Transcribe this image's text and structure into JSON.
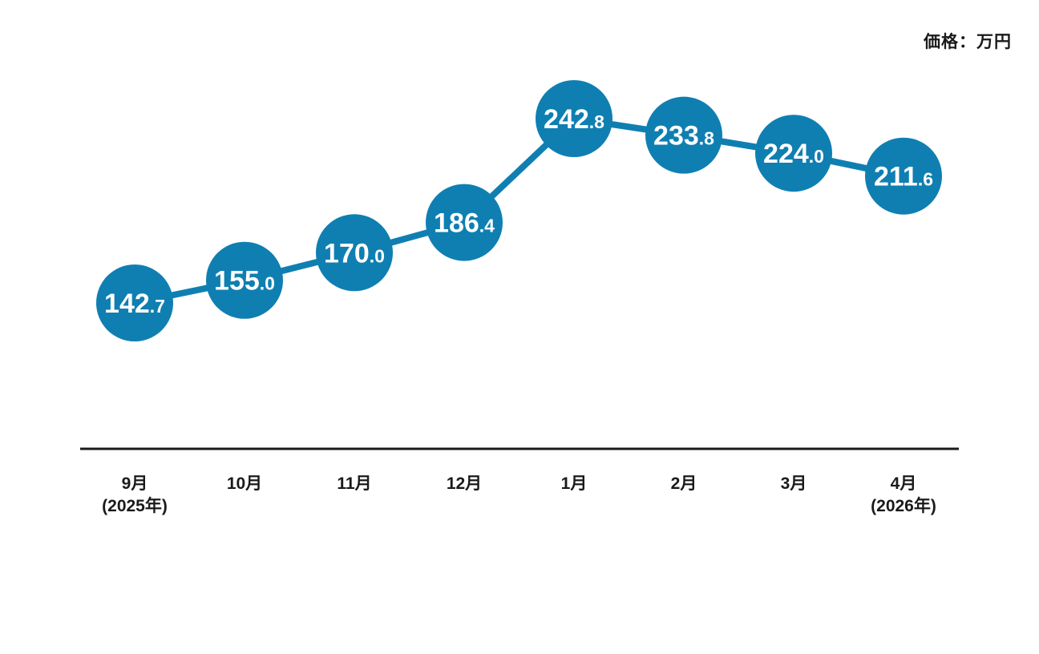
{
  "chart": {
    "unit_label": "価格：万円"
  },
  "chart_data": {
    "type": "line",
    "title": "",
    "unit_label": "価格：万円",
    "series": [
      {
        "name": "価格（万円）",
        "values": [
          142.7,
          155.0,
          170.0,
          186.4,
          242.8,
          233.8,
          224.0,
          211.6
        ]
      }
    ],
    "categories": [
      {
        "month": "9月",
        "year": "(2025年)"
      },
      {
        "month": "10月",
        "year": ""
      },
      {
        "month": "11月",
        "year": ""
      },
      {
        "month": "12月",
        "year": ""
      },
      {
        "month": "1月",
        "year": ""
      },
      {
        "month": "2月",
        "year": ""
      },
      {
        "month": "3月",
        "year": ""
      },
      {
        "month": "4月",
        "year": "(2026年)"
      }
    ],
    "point_labels": [
      "142.7",
      "155.0",
      "170.0",
      "186.4",
      "242.8",
      "233.8",
      "224.0",
      "211.6"
    ],
    "point_color": "#0F7FB2",
    "line_color": "#0F7FB2",
    "value_text_color": "#FFFFFF",
    "axis_color": "#1A1A1A",
    "label_color": "#1A1A1A",
    "grid": false,
    "legend_position": "none",
    "xlabel": "",
    "ylabel": "価格：万円",
    "ylim": [
      130,
      255
    ]
  }
}
